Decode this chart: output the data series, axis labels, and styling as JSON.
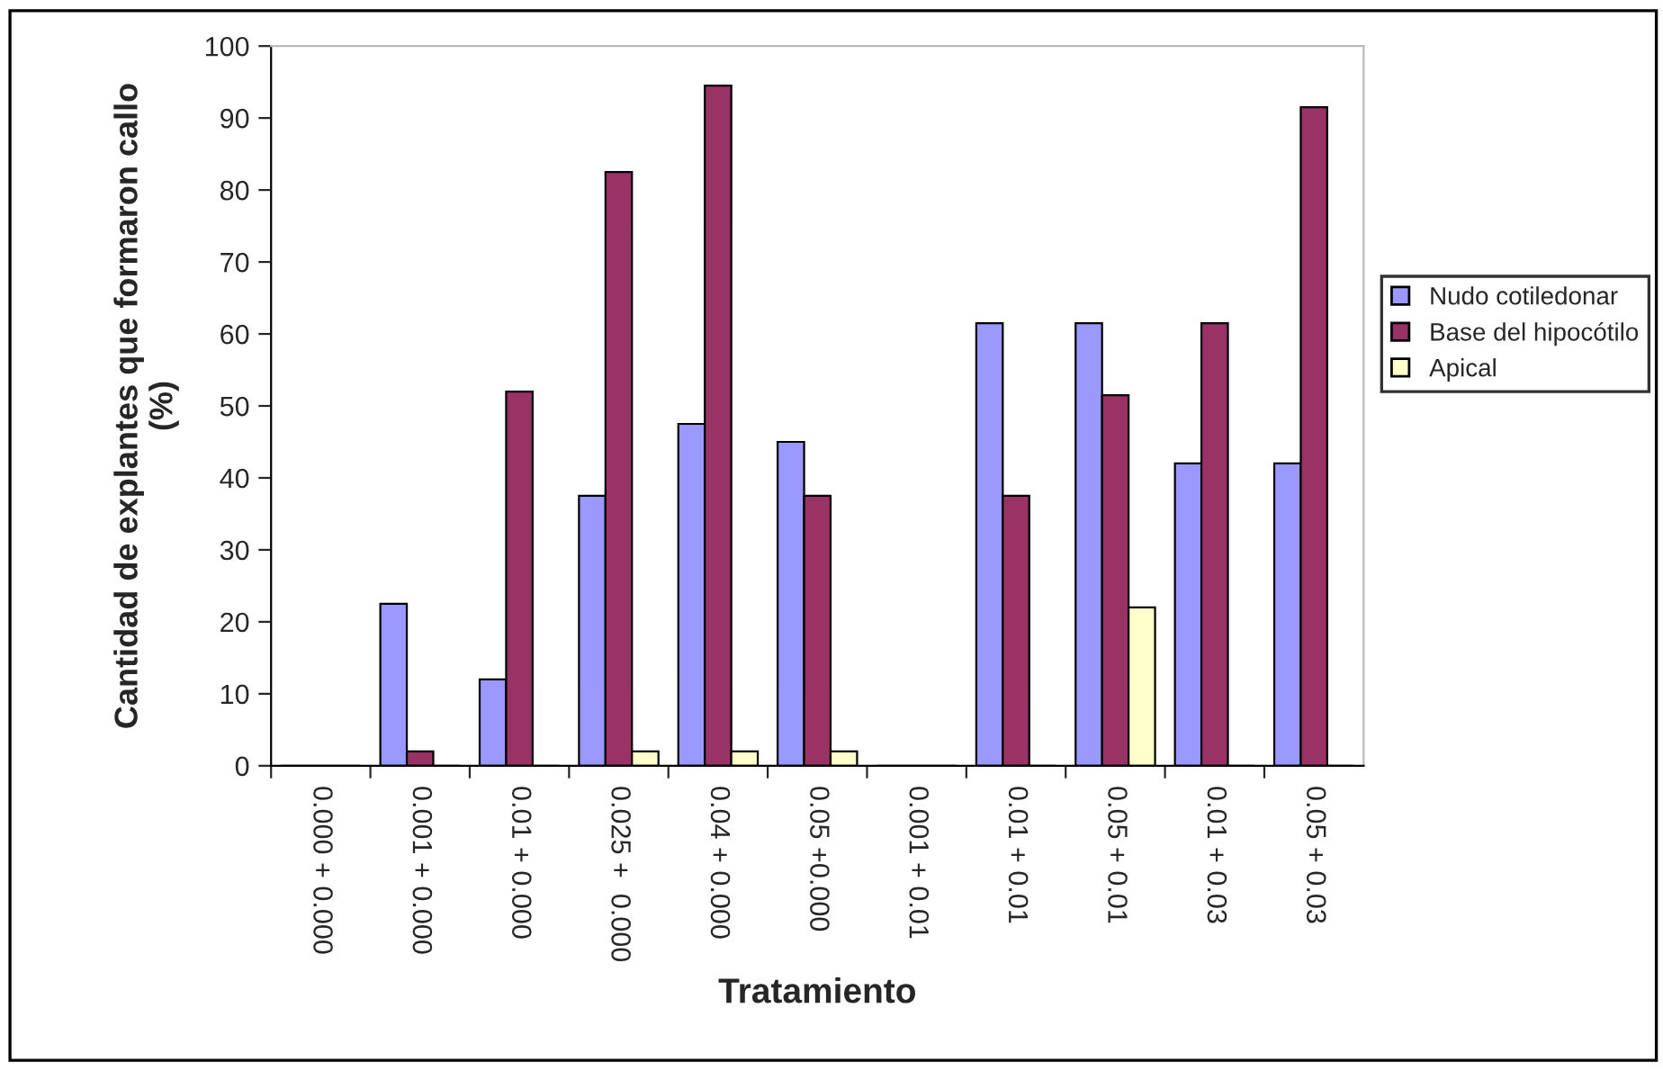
{
  "chart_data": {
    "type": "bar",
    "xlabel": "Tratamiento",
    "ylabel": "Cantidad de explantes que formaron callo\n(%)",
    "categories": [
      "0.000 + 0.000",
      "0.001 + 0.000",
      "0.01 + 0.000",
      "0.025 +  0.000",
      "0.04 + 0.000",
      "0.05 +0.000",
      "0.001 + 0.01",
      "0.01 + 0.01",
      "0.05 + 0.01",
      "0.01 + 0.03",
      "0.05 + 0.03"
    ],
    "series": [
      {
        "name": "Nudo cotiledonar",
        "color": "#9999ff",
        "values": [
          0,
          22.5,
          12,
          37.5,
          47.5,
          45,
          0,
          61.5,
          61.5,
          42,
          42
        ]
      },
      {
        "name": "Base del hipocótilo",
        "color": "#993366",
        "values": [
          0,
          2,
          52,
          82.5,
          94.5,
          37.5,
          0,
          37.5,
          51.5,
          61.5,
          91.5
        ]
      },
      {
        "name": "Apical",
        "color": "#ffffcc",
        "values": [
          0,
          0,
          0,
          2,
          2,
          2,
          0,
          0,
          22,
          0,
          0
        ]
      }
    ],
    "ylim": [
      0,
      100
    ],
    "yticks": [
      0,
      10,
      20,
      30,
      40,
      50,
      60,
      70,
      80,
      90,
      100
    ],
    "grid": false,
    "legend": "right"
  }
}
